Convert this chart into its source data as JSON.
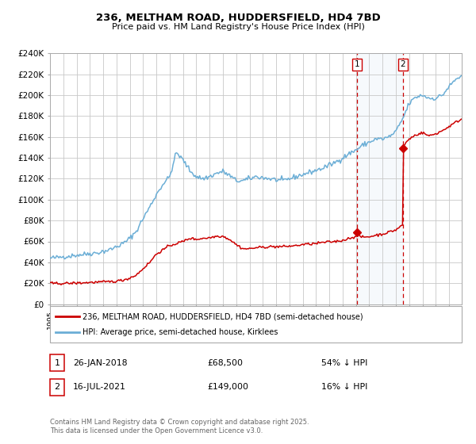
{
  "title": "236, MELTHAM ROAD, HUDDERSFIELD, HD4 7BD",
  "subtitle": "Price paid vs. HM Land Registry's House Price Index (HPI)",
  "hpi_color": "#6baed6",
  "price_color": "#cc0000",
  "background_color": "#ffffff",
  "plot_bg_color": "#ffffff",
  "grid_color": "#c8c8c8",
  "shade_color": "#dce9f7",
  "sale1_date_num": 2018.07,
  "sale1_price": 68500,
  "sale1_label": "26-JAN-2018",
  "sale1_hpi_text": "54% ↓ HPI",
  "sale2_date_num": 2021.54,
  "sale2_price": 149000,
  "sale2_label": "16-JUL-2021",
  "sale2_hpi_text": "16% ↓ HPI",
  "legend1": "236, MELTHAM ROAD, HUDDERSFIELD, HD4 7BD (semi-detached house)",
  "legend2": "HPI: Average price, semi-detached house, Kirklees",
  "footer": "Contains HM Land Registry data © Crown copyright and database right 2025.\nThis data is licensed under the Open Government Licence v3.0.",
  "ylabel_ticks": [
    "£0",
    "£20K",
    "£40K",
    "£60K",
    "£80K",
    "£100K",
    "£120K",
    "£140K",
    "£160K",
    "£180K",
    "£200K",
    "£220K",
    "£240K"
  ],
  "ytick_vals": [
    0,
    20000,
    40000,
    60000,
    80000,
    100000,
    120000,
    140000,
    160000,
    180000,
    200000,
    220000,
    240000
  ],
  "xmin": 1995.0,
  "xmax": 2025.95,
  "ymin": 0,
  "ymax": 240000
}
